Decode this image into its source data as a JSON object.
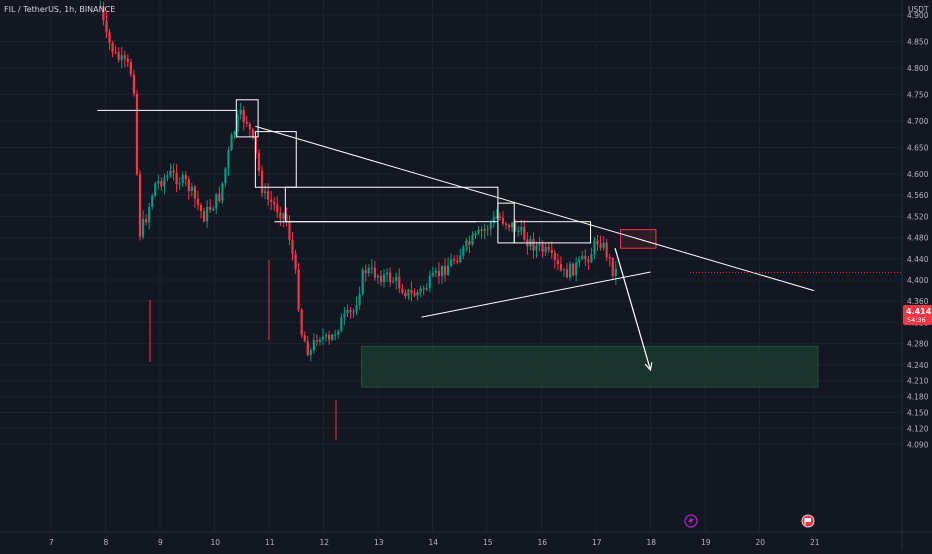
{
  "header": {
    "symbol_label": "FIL / TetherUS, 1h, BINANCE",
    "currency": "USDT"
  },
  "current_price": {
    "value": "4.414",
    "countdown": "54:36",
    "badge_color": "#f23645"
  },
  "colors": {
    "background": "#131722",
    "grid": "#1e222d",
    "up_candle": "#089981",
    "down_candle": "#f23645",
    "drawing_line": "#ffffff",
    "supply_zone": "#f23645",
    "demand_zone": "#1b3a2e"
  },
  "events": [
    {
      "icon": "lightning-icon",
      "color": "#9c27b0"
    },
    {
      "icon": "flag-icon",
      "color": "#f23645"
    }
  ],
  "chart_data": {
    "type": "candlestick",
    "title": "",
    "xlabel": "",
    "ylabel": "",
    "ylim": [
      4.065,
      4.925
    ],
    "x_ticks": [
      "7",
      "8",
      "9",
      "10",
      "11",
      "12",
      "13",
      "14",
      "15",
      "16",
      "17",
      "18",
      "19",
      "20",
      "21"
    ],
    "y_ticks": [
      "4.900",
      "4.850",
      "4.800",
      "4.750",
      "4.700",
      "4.650",
      "4.600",
      "4.560",
      "4.520",
      "4.480",
      "4.440",
      "4.400",
      "4.360",
      "4.320",
      "4.280",
      "4.240",
      "4.210",
      "4.180",
      "4.150",
      "4.120",
      "4.090"
    ],
    "price_path": [
      [
        "7.85",
        4.95
      ],
      [
        "8.0",
        4.86
      ],
      [
        "8.2",
        4.82
      ],
      [
        "8.45",
        4.8
      ],
      [
        "8.55",
        4.75
      ],
      [
        "8.6",
        4.48
      ],
      [
        "8.75",
        4.52
      ],
      [
        "8.9",
        4.58
      ],
      [
        "9.2",
        4.6
      ],
      [
        "9.5",
        4.58
      ],
      [
        "9.8",
        4.52
      ],
      [
        "10.1",
        4.56
      ],
      [
        "10.3",
        4.66
      ],
      [
        "10.45",
        4.71
      ],
      [
        "10.6",
        4.7
      ],
      [
        "10.75",
        4.64
      ],
      [
        "10.9",
        4.56
      ],
      [
        "11.1",
        4.54
      ],
      [
        "11.3",
        4.52
      ],
      [
        "11.4",
        4.47
      ],
      [
        "11.5",
        4.4
      ],
      [
        "11.6",
        4.3
      ],
      [
        "11.75",
        4.26
      ],
      [
        "11.9",
        4.3
      ],
      [
        "12.1",
        4.28
      ],
      [
        "12.3",
        4.32
      ],
      [
        "12.55",
        4.34
      ],
      [
        "12.75",
        4.42
      ],
      [
        "13.0",
        4.41
      ],
      [
        "13.3",
        4.4
      ],
      [
        "13.6",
        4.37
      ],
      [
        "13.8",
        4.38
      ],
      [
        "14.1",
        4.41
      ],
      [
        "14.5",
        4.45
      ],
      [
        "14.9",
        4.49
      ],
      [
        "15.2",
        4.52
      ],
      [
        "15.5",
        4.5
      ],
      [
        "15.8",
        4.47
      ],
      [
        "16.1",
        4.45
      ],
      [
        "16.4",
        4.41
      ],
      [
        "16.7",
        4.43
      ],
      [
        "16.9",
        4.45
      ],
      [
        "17.05",
        4.48
      ],
      [
        "17.2",
        4.45
      ],
      [
        "17.3",
        4.42
      ],
      [
        "17.4",
        4.414
      ]
    ],
    "drawings": {
      "descending_trendline": [
        [
          "10.75",
          4.69
        ],
        [
          "21.0",
          4.38
        ]
      ],
      "ascending_trendline": [
        [
          "13.8",
          4.33
        ],
        [
          "18.0",
          4.415
        ]
      ],
      "projection_arrow": [
        [
          "17.35",
          4.46
        ],
        [
          "18.0",
          4.23
        ]
      ],
      "supply_zone": {
        "x": [
          "17.45",
          "18.1"
        ],
        "y": [
          4.46,
          4.495
        ]
      },
      "demand_zone": {
        "x": [
          "12.7",
          "21.0"
        ],
        "y": [
          4.198,
          4.275
        ]
      },
      "horizontal_levels": [
        {
          "x": [
            "7.85",
            "10.4"
          ],
          "y": 4.72
        },
        {
          "x": [
            "11.1",
            "14.8"
          ],
          "y": 4.51
        }
      ],
      "boxes": [
        {
          "x": [
            "10.4",
            "10.8"
          ],
          "y": [
            4.67,
            4.74
          ]
        },
        {
          "x": [
            "10.75",
            "11.5"
          ],
          "y": [
            4.575,
            4.68
          ]
        },
        {
          "x": [
            "11.3",
            "15.2"
          ],
          "y": [
            4.51,
            4.575
          ]
        },
        {
          "x": [
            "15.2",
            "15.5"
          ],
          "y": [
            4.47,
            4.545
          ]
        },
        {
          "x": [
            "15.5",
            "16.9"
          ],
          "y": [
            4.47,
            4.51
          ]
        }
      ]
    }
  }
}
